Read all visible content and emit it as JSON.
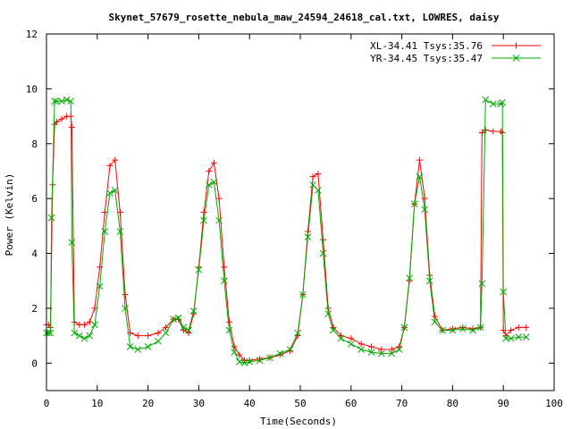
{
  "chart_data": {
    "type": "line",
    "title": "Skynet_57679_rosette_nebula_maw_24594_24618_cal.txt, LOWRES, daisy",
    "xlabel": "Time(Seconds)",
    "ylabel": "Power (Kelvin)",
    "xlim": [
      0,
      100
    ],
    "ylim": [
      -1,
      12
    ],
    "x_ticks": [
      0,
      10,
      20,
      30,
      40,
      50,
      60,
      70,
      80,
      90,
      100
    ],
    "y_ticks": [
      0,
      2,
      4,
      6,
      8,
      10,
      12
    ],
    "grid": false,
    "legend_position": "top-right",
    "series": [
      {
        "name": "XL-34.41 Tsys:35.76",
        "color": "#ff0000",
        "marker": "plus",
        "x": [
          0,
          0.4,
          0.8,
          1.2,
          1.6,
          2.0,
          3.0,
          4.0,
          4.8,
          5.0,
          5.5,
          6.5,
          7.5,
          8.5,
          9.5,
          10.5,
          11.5,
          12.5,
          13.5,
          14.5,
          15.5,
          16.5,
          18,
          20,
          22,
          23.5,
          25,
          26,
          27,
          28,
          29,
          30,
          31,
          32,
          33,
          34,
          35,
          36,
          37,
          38,
          39,
          40,
          42,
          44,
          46,
          48,
          49.5,
          50.5,
          51.5,
          52.5,
          53.5,
          54.5,
          55.5,
          56.5,
          58,
          60,
          62,
          64,
          66,
          68,
          69.5,
          70.5,
          71.5,
          72.5,
          73.5,
          74.5,
          75.5,
          76.5,
          78,
          80,
          82,
          84,
          85.5,
          85.8,
          86.5,
          88,
          89.5,
          89.8,
          90.0,
          90.5,
          91.5,
          93,
          94.5
        ],
        "y": [
          1.4,
          1.4,
          1.3,
          6.5,
          8.7,
          8.8,
          8.9,
          9.0,
          9.0,
          8.6,
          1.5,
          1.4,
          1.4,
          1.5,
          2.0,
          3.5,
          5.5,
          7.2,
          7.4,
          5.5,
          2.5,
          1.1,
          1.0,
          1.0,
          1.1,
          1.3,
          1.6,
          1.6,
          1.2,
          1.1,
          1.8,
          3.5,
          5.5,
          7.0,
          7.3,
          6.0,
          3.5,
          1.5,
          0.6,
          0.3,
          0.1,
          0.1,
          0.15,
          0.2,
          0.3,
          0.45,
          1.0,
          2.5,
          4.8,
          6.8,
          6.9,
          4.5,
          2.0,
          1.3,
          1.0,
          0.9,
          0.7,
          0.6,
          0.5,
          0.5,
          0.6,
          1.3,
          3.0,
          5.8,
          7.4,
          6.0,
          3.2,
          1.7,
          1.2,
          1.25,
          1.3,
          1.25,
          1.3,
          8.4,
          8.5,
          8.45,
          8.45,
          8.4,
          1.2,
          1.0,
          1.2,
          1.3,
          1.3
        ]
      },
      {
        "name": "YR-34.45 Tsys:35.47",
        "color": "#00aa00",
        "marker": "cross",
        "x": [
          0,
          0.4,
          0.8,
          1.0,
          1.6,
          2.0,
          3.0,
          4.0,
          4.8,
          5.0,
          5.5,
          6.5,
          7.5,
          8.5,
          9.5,
          10.5,
          11.5,
          12.5,
          13.5,
          14.5,
          15.5,
          16.5,
          18,
          20,
          22,
          23.5,
          25,
          26,
          27,
          28,
          29,
          30,
          31,
          32,
          33,
          34,
          35,
          36,
          37,
          38,
          39,
          40,
          42,
          44,
          46,
          48,
          49.5,
          50.5,
          51.5,
          52.5,
          53.5,
          54.5,
          55.5,
          56.5,
          58,
          60,
          62,
          64,
          66,
          68,
          69.5,
          70.5,
          71.5,
          72.5,
          73.5,
          74.5,
          75.5,
          76.5,
          78,
          80,
          82,
          84,
          85.5,
          85.8,
          86.5,
          88,
          89.5,
          89.8,
          90.0,
          90.5,
          91.5,
          93,
          94.5
        ],
        "y": [
          1.1,
          1.1,
          1.1,
          5.3,
          9.55,
          9.55,
          9.55,
          9.6,
          9.55,
          4.4,
          1.1,
          1.0,
          0.9,
          1.0,
          1.4,
          2.8,
          4.8,
          6.2,
          6.3,
          4.8,
          2.0,
          0.6,
          0.5,
          0.6,
          0.8,
          1.1,
          1.6,
          1.65,
          1.3,
          1.2,
          1.9,
          3.4,
          5.2,
          6.5,
          6.6,
          5.2,
          3.0,
          1.2,
          0.4,
          0.05,
          0.0,
          0.05,
          0.1,
          0.2,
          0.35,
          0.5,
          1.1,
          2.5,
          4.6,
          6.5,
          6.3,
          4.0,
          1.8,
          1.2,
          0.9,
          0.7,
          0.5,
          0.4,
          0.35,
          0.35,
          0.5,
          1.3,
          3.1,
          5.8,
          6.8,
          5.6,
          3.0,
          1.5,
          1.2,
          1.2,
          1.25,
          1.2,
          1.3,
          2.9,
          9.6,
          9.45,
          9.45,
          9.5,
          2.6,
          0.9,
          0.9,
          0.95,
          0.95
        ]
      }
    ]
  }
}
